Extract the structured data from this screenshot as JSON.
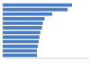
{
  "chart_data": {
    "type": "bar",
    "orientation": "horizontal",
    "categories": [
      null,
      null,
      null,
      null,
      null,
      null,
      null,
      null,
      null,
      null,
      null,
      null
    ],
    "values": [
      81,
      76,
      58,
      49,
      47,
      46,
      44,
      43,
      42,
      41,
      40,
      40
    ],
    "color": "#4a7cc4",
    "xlim": [
      0,
      100
    ],
    "grid": false,
    "tick_labels": false
  }
}
